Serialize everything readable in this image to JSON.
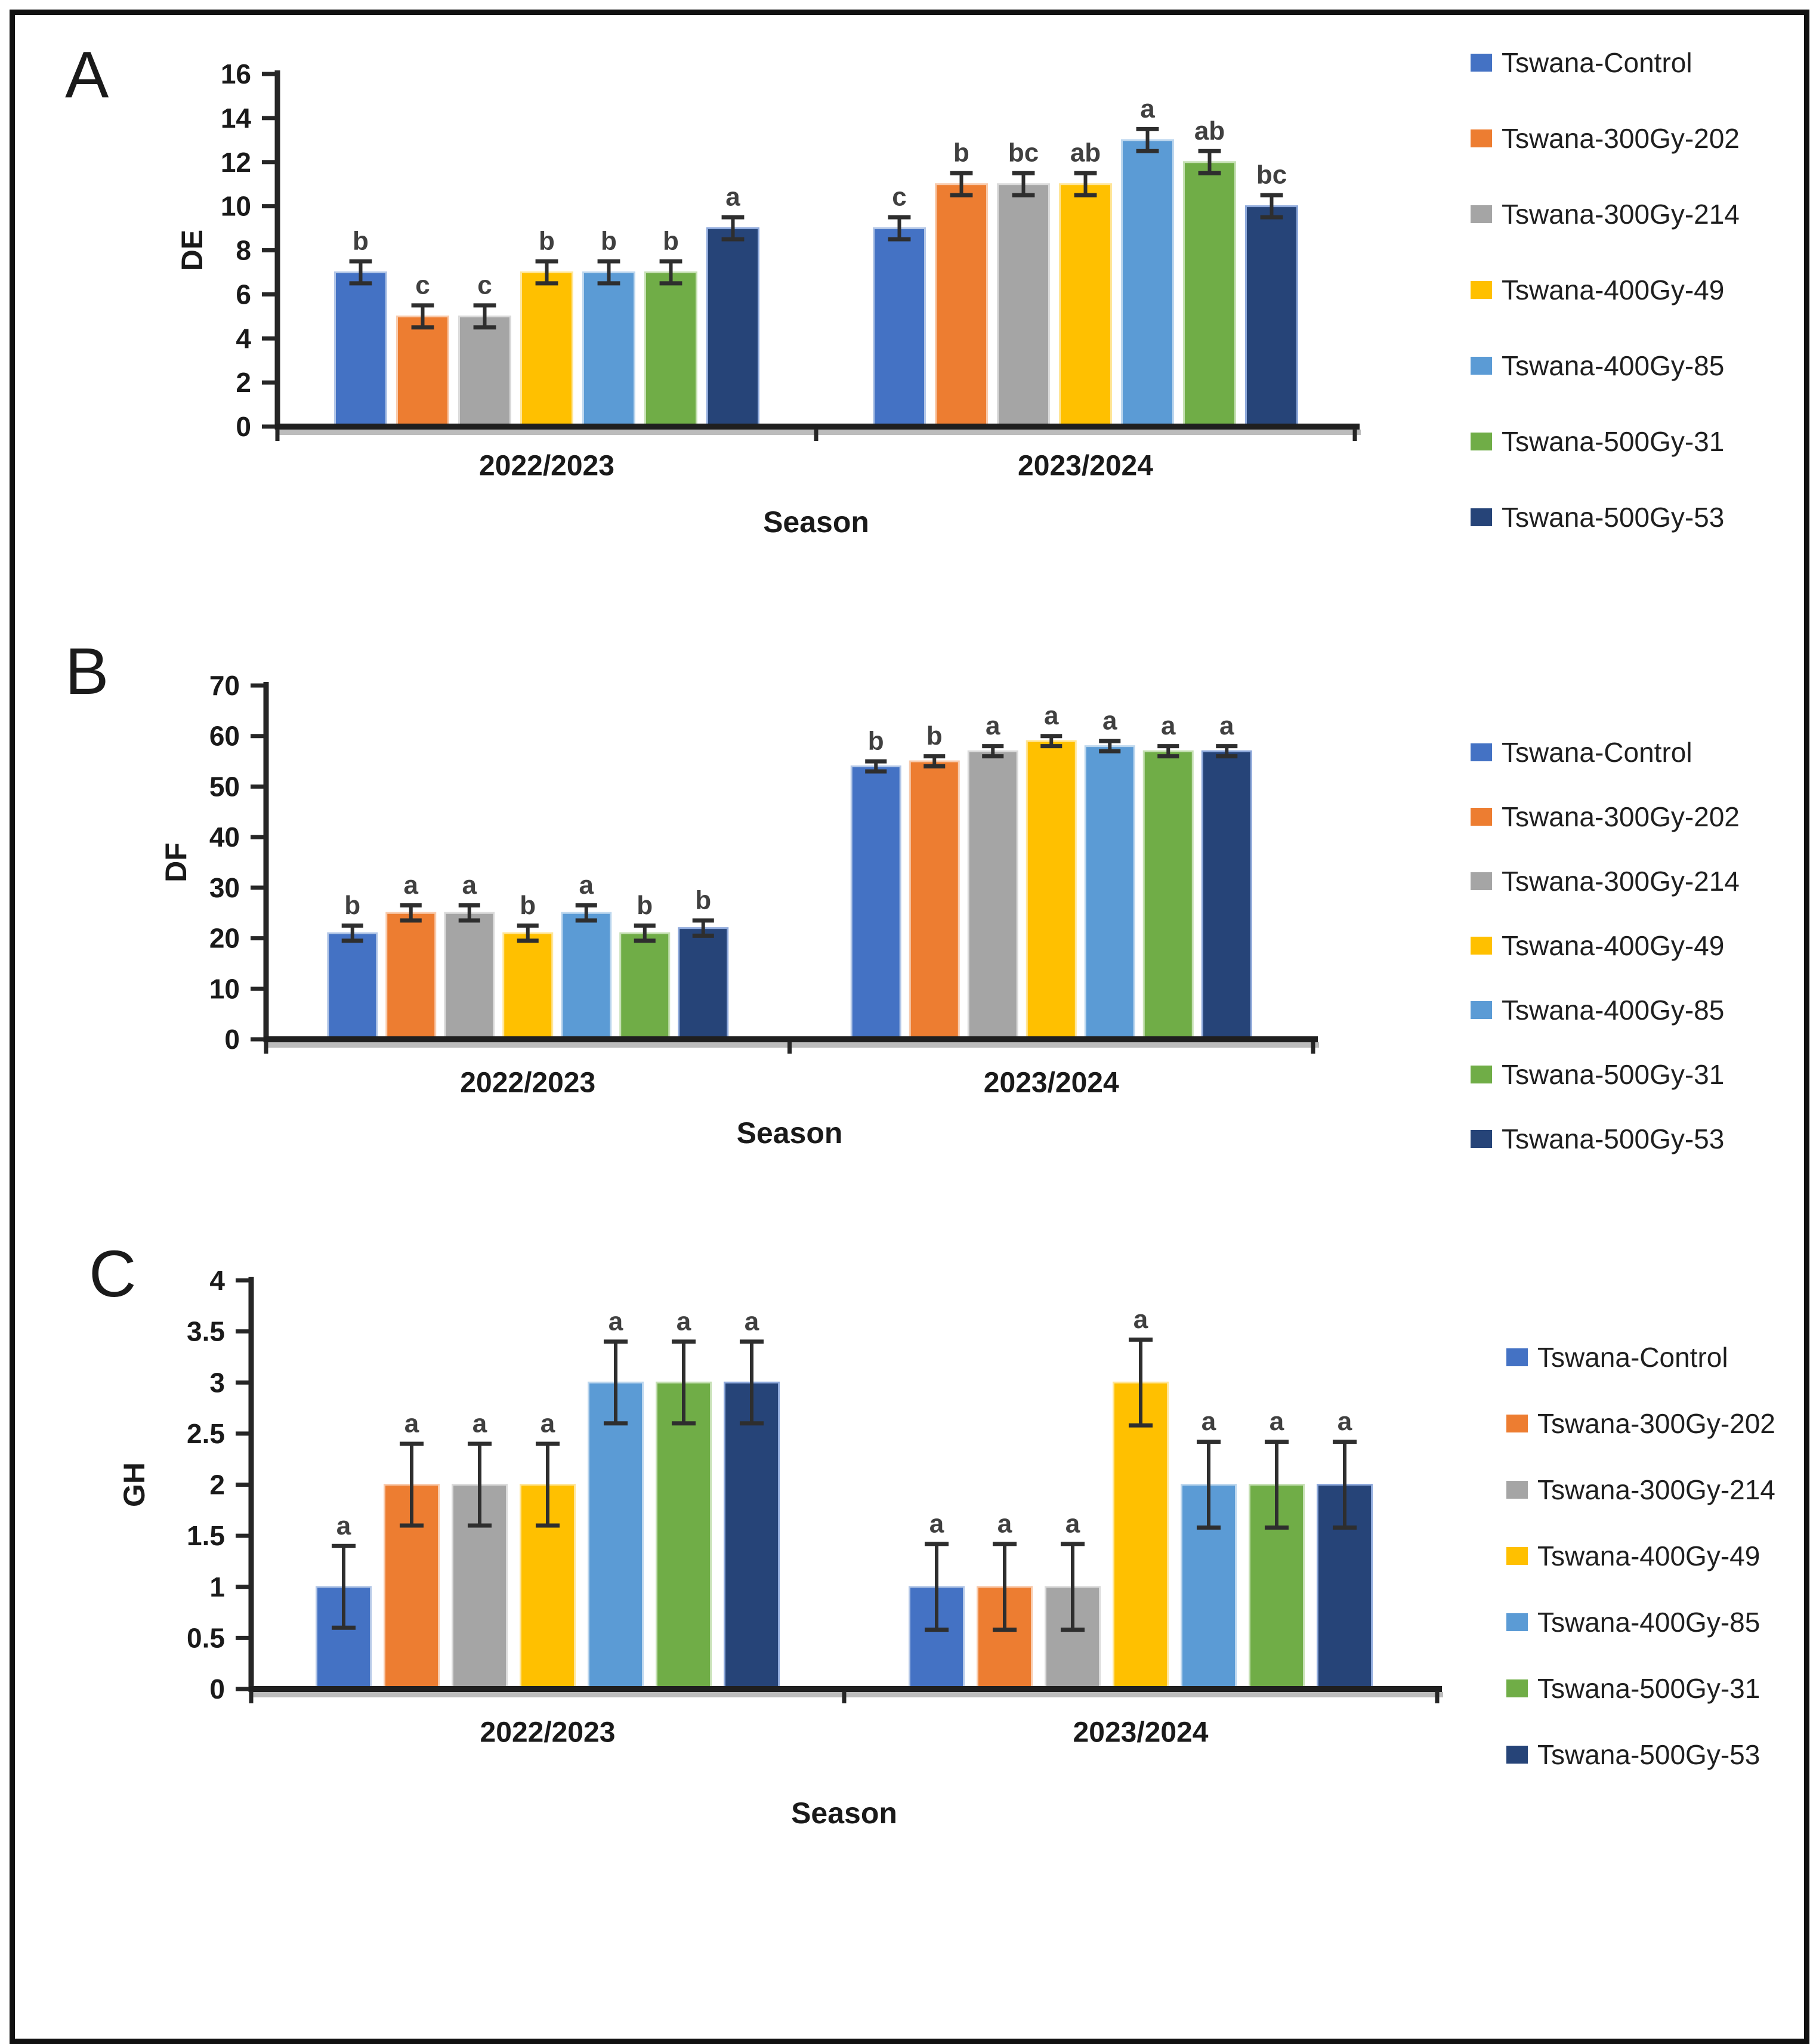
{
  "figure": {
    "panel_labels": [
      "A",
      "B",
      "C"
    ],
    "xlabel": "Season",
    "categories": [
      "2022/2023",
      "2023/2024"
    ]
  },
  "series": [
    {
      "label": "Tswana-Control",
      "color": "#4472C4",
      "edge": "#B4C7E7"
    },
    {
      "label": "Tswana-300Gy-202",
      "color": "#ED7D31",
      "edge": "#F8CBAD"
    },
    {
      "label": "Tswana-300Gy-214",
      "color": "#A5A5A5",
      "edge": "#DBDBDB"
    },
    {
      "label": "Tswana-400Gy-49",
      "color": "#FFC000",
      "edge": "#FFE699"
    },
    {
      "label": "Tswana-400Gy-85",
      "color": "#5B9BD5",
      "edge": "#BDD7EE"
    },
    {
      "label": "Tswana-500Gy-31",
      "color": "#70AD47",
      "edge": "#C6E0B4"
    },
    {
      "label": "Tswana-500Gy-53",
      "color": "#264478",
      "edge": "#8FAADC"
    }
  ],
  "error_bar_color": "#2e2e2e",
  "sig_letter_color": "#404040",
  "axis_color": "#262626",
  "chart_data": [
    {
      "panel_label": "A",
      "type": "bar",
      "title": "",
      "ylabel": "DE",
      "xlabel": "Season",
      "ylim": [
        0,
        16
      ],
      "ytick_step": 2,
      "legend_position": "right",
      "grid": false,
      "categories": [
        "2022/2023",
        "2023/2024"
      ],
      "series": [
        "Tswana-Control",
        "Tswana-300Gy-202",
        "Tswana-300Gy-214",
        "Tswana-400Gy-49",
        "Tswana-400Gy-85",
        "Tswana-500Gy-31",
        "Tswana-500Gy-53"
      ],
      "values": [
        [
          7,
          5,
          5,
          7,
          7,
          7,
          9
        ],
        [
          9,
          11,
          11,
          11,
          13,
          12,
          10
        ]
      ],
      "errors": [
        [
          0.5,
          0.5,
          0.5,
          0.5,
          0.5,
          0.5,
          0.5
        ],
        [
          0.5,
          0.5,
          0.5,
          0.5,
          0.5,
          0.5,
          0.5
        ]
      ],
      "sig_letters": [
        [
          "b",
          "c",
          "c",
          "b",
          "b",
          "b",
          "a"
        ],
        [
          "c",
          "b",
          "bc",
          "ab",
          "a",
          "ab",
          "bc"
        ]
      ]
    },
    {
      "panel_label": "B",
      "type": "bar",
      "title": "",
      "ylabel": "DF",
      "xlabel": "Season",
      "ylim": [
        0,
        70
      ],
      "ytick_step": 10,
      "legend_position": "right",
      "grid": false,
      "categories": [
        "2022/2023",
        "2023/2024"
      ],
      "series": [
        "Tswana-Control",
        "Tswana-300Gy-202",
        "Tswana-300Gy-214",
        "Tswana-400Gy-49",
        "Tswana-400Gy-85",
        "Tswana-500Gy-31",
        "Tswana-500Gy-53"
      ],
      "values": [
        [
          21,
          25,
          25,
          21,
          25,
          21,
          22
        ],
        [
          54,
          55,
          57,
          59,
          58,
          57,
          57
        ]
      ],
      "errors": [
        [
          1.5,
          1.5,
          1.5,
          1.5,
          1.5,
          1.5,
          1.5
        ],
        [
          1,
          1,
          1,
          1,
          1,
          1,
          1
        ]
      ],
      "sig_letters": [
        [
          "b",
          "a",
          "a",
          "b",
          "a",
          "b",
          "b"
        ],
        [
          "b",
          "b",
          "a",
          "a",
          "a",
          "a",
          "a"
        ]
      ]
    },
    {
      "panel_label": "C",
      "type": "bar",
      "title": "",
      "ylabel": "GH",
      "xlabel": "Season",
      "ylim": [
        0,
        4
      ],
      "ytick_step": 0.5,
      "legend_position": "right",
      "grid": false,
      "categories": [
        "2022/2023",
        "2023/2024"
      ],
      "series": [
        "Tswana-Control",
        "Tswana-300Gy-202",
        "Tswana-300Gy-214",
        "Tswana-400Gy-49",
        "Tswana-400Gy-85",
        "Tswana-500Gy-31",
        "Tswana-500Gy-53"
      ],
      "values": [
        [
          1,
          2,
          2,
          2,
          3,
          3,
          3
        ],
        [
          1,
          1,
          1,
          3,
          2,
          2,
          2
        ]
      ],
      "errors": [
        [
          0.4,
          0.4,
          0.4,
          0.4,
          0.4,
          0.4,
          0.4
        ],
        [
          0.42,
          0.42,
          0.42,
          0.42,
          0.42,
          0.42,
          0.42
        ]
      ],
      "sig_letters": [
        [
          "a",
          "a",
          "a",
          "a",
          "a",
          "a",
          "a"
        ],
        [
          "a",
          "a",
          "a",
          "a",
          "a",
          "a",
          "a"
        ]
      ]
    }
  ]
}
